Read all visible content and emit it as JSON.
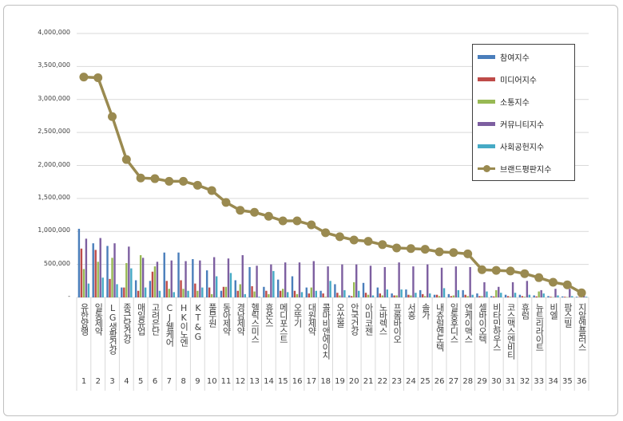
{
  "chart_data": {
    "type": "bar",
    "ylim": [
      0,
      4000000
    ],
    "yticks": [
      "-",
      "500,000",
      "1,000,000",
      "1,500,000",
      "2,000,000",
      "2,500,000",
      "3,000,000",
      "3,500,000",
      "4,000,000"
    ],
    "ytick_values": [
      0,
      500000,
      1000000,
      1500000,
      2000000,
      2500000,
      3000000,
      3500000,
      4000000
    ],
    "grid": true,
    "legend_placement": "top-right",
    "categories": [
      "유한양행",
      "일동제약",
      "LG생활건강",
      "종근당건강",
      "매일유업",
      "고려은단",
      "CJ웰케어",
      "HK이노엔",
      "KT&G",
      "풀무원",
      "동아제약",
      "경남제약",
      "헬릭스미스",
      "휴온스",
      "메디포스트",
      "오뚜기",
      "대원제약",
      "콜마비앤에이치",
      "오쏘몰",
      "안국건강",
      "아미코젠",
      "노바렉스",
      "프롬바이오",
      "서흥",
      "솔가",
      "내츄럴엔도텍",
      "일동후디스",
      "엔케이맥스",
      "셀바이오텍",
      "비타민하우스",
      "코스맥스엔비티",
      "휴럼",
      "뉴트리라이트",
      "비엘",
      "팜스빌",
      "지알엔플러스"
    ],
    "ranks": [
      "1",
      "2",
      "3",
      "4",
      "5",
      "6",
      "7",
      "8",
      "9",
      "10",
      "11",
      "12",
      "13",
      "14",
      "15",
      "16",
      "17",
      "18",
      "19",
      "20",
      "21",
      "22",
      "23",
      "24",
      "25",
      "26",
      "27",
      "28",
      "29",
      "30",
      "31",
      "32",
      "33",
      "34",
      "35",
      "36"
    ],
    "series": [
      {
        "name": "참여지수",
        "type": "bar",
        "color": "#4a7ebb",
        "values": [
          1040000,
          820000,
          780000,
          150000,
          260000,
          250000,
          680000,
          680000,
          580000,
          410000,
          100000,
          260000,
          460000,
          160000,
          270000,
          320000,
          150000,
          100000,
          200000,
          30000,
          220000,
          150000,
          60000,
          120000,
          110000,
          40000,
          50000,
          110000,
          60000,
          20000,
          40000,
          40000,
          30000,
          20000,
          15000,
          10000
        ]
      },
      {
        "name": "미디어지수",
        "type": "bar",
        "color": "#be4b48",
        "values": [
          740000,
          720000,
          280000,
          150000,
          100000,
          390000,
          250000,
          260000,
          210000,
          150000,
          160000,
          100000,
          170000,
          100000,
          100000,
          100000,
          60000,
          60000,
          70000,
          20000,
          70000,
          60000,
          30000,
          40000,
          50000,
          40000,
          20000,
          40000,
          20000,
          15000,
          20000,
          20000,
          15000,
          10000,
          10000,
          5000
        ]
      },
      {
        "name": "소통지수",
        "type": "bar",
        "color": "#98b954",
        "values": [
          430000,
          540000,
          600000,
          520000,
          640000,
          470000,
          130000,
          130000,
          100000,
          50000,
          160000,
          200000,
          90000,
          50000,
          130000,
          50000,
          150000,
          10000,
          30000,
          230000,
          40000,
          30000,
          30000,
          30000,
          20000,
          20000,
          30000,
          20000,
          20000,
          110000,
          10000,
          10000,
          90000,
          5000,
          5000,
          5000
        ]
      },
      {
        "name": "커뮤니티지수",
        "type": "bar",
        "color": "#7d5fa0",
        "values": [
          890000,
          900000,
          820000,
          770000,
          600000,
          540000,
          560000,
          550000,
          560000,
          610000,
          590000,
          640000,
          480000,
          500000,
          530000,
          530000,
          550000,
          470000,
          500000,
          500000,
          480000,
          460000,
          530000,
          470000,
          500000,
          450000,
          470000,
          460000,
          230000,
          160000,
          230000,
          250000,
          110000,
          130000,
          130000,
          40000
        ]
      },
      {
        "name": "사회공헌지수",
        "type": "bar",
        "color": "#46aac5",
        "values": [
          210000,
          300000,
          200000,
          440000,
          150000,
          100000,
          80000,
          100000,
          150000,
          320000,
          370000,
          50000,
          10000,
          400000,
          80000,
          80000,
          100000,
          250000,
          110000,
          100000,
          30000,
          120000,
          120000,
          70000,
          60000,
          140000,
          110000,
          40000,
          90000,
          70000,
          70000,
          40000,
          60000,
          30000,
          20000,
          10000
        ]
      },
      {
        "name": "브랜드평판지수",
        "type": "line",
        "color": "#9a8a50",
        "values": [
          3340000,
          3330000,
          2740000,
          2090000,
          1810000,
          1800000,
          1760000,
          1760000,
          1700000,
          1620000,
          1440000,
          1320000,
          1290000,
          1230000,
          1160000,
          1160000,
          1100000,
          980000,
          920000,
          870000,
          850000,
          800000,
          750000,
          740000,
          730000,
          690000,
          680000,
          660000,
          420000,
          410000,
          400000,
          360000,
          300000,
          230000,
          190000,
          70000
        ]
      }
    ]
  }
}
